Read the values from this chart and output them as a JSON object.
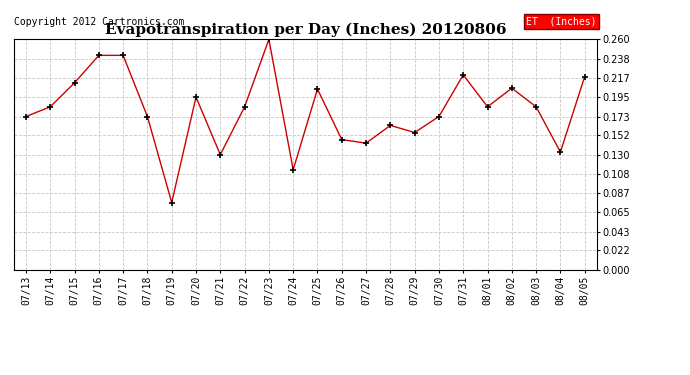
{
  "title": "Evapotranspiration per Day (Inches) 20120806",
  "copyright": "Copyright 2012 Cartronics.com",
  "legend_label": "ET  (Inches)",
  "legend_bg": "#ff0000",
  "legend_fg": "#ffffff",
  "line_color": "#cc0000",
  "marker_color": "#000000",
  "background_color": "#ffffff",
  "grid_color": "#c8c8c8",
  "x_labels": [
    "07/13",
    "07/14",
    "07/15",
    "07/16",
    "07/17",
    "07/18",
    "07/19",
    "07/20",
    "07/21",
    "07/22",
    "07/23",
    "07/24",
    "07/25",
    "07/26",
    "07/27",
    "07/28",
    "07/29",
    "07/30",
    "07/31",
    "08/01",
    "08/02",
    "08/03",
    "08/04",
    "08/05"
  ],
  "y_values": [
    0.173,
    0.184,
    0.211,
    0.242,
    0.242,
    0.173,
    0.076,
    0.195,
    0.13,
    0.184,
    0.26,
    0.113,
    0.204,
    0.147,
    0.143,
    0.163,
    0.155,
    0.173,
    0.22,
    0.184,
    0.205,
    0.184,
    0.133,
    0.218
  ],
  "ylim": [
    0.0,
    0.26
  ],
  "yticks": [
    0.0,
    0.022,
    0.043,
    0.065,
    0.087,
    0.108,
    0.13,
    0.152,
    0.173,
    0.195,
    0.217,
    0.238,
    0.26
  ],
  "title_fontsize": 11,
  "tick_fontsize": 7,
  "copyright_fontsize": 7
}
